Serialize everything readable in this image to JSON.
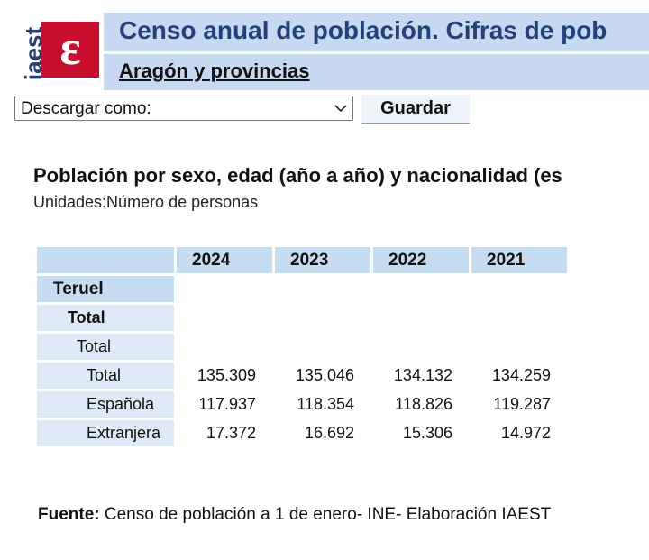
{
  "logo": "iaest",
  "header": {
    "title": "Censo anual de población. Cifras de pob",
    "subtitle": "Aragón y provincias"
  },
  "toolbar": {
    "select": "Descargar como:",
    "button": "Guardar"
  },
  "table_title": "Población por sexo, edad (año a año) y nacionalidad (es",
  "units": "Unidades:Número de personas",
  "table": {
    "columns": [
      "2024",
      "2023",
      "2022",
      "2021"
    ],
    "rows": [
      {
        "label": "Teruel"
      },
      {
        "label": "Total"
      },
      {
        "label": "Total"
      },
      {
        "label": "Total",
        "values": [
          "135.309",
          "135.046",
          "134.132",
          "134.259"
        ]
      },
      {
        "label": "Española",
        "values": [
          "117.937",
          "118.354",
          "118.826",
          "119.287"
        ]
      },
      {
        "label": "Extranjera",
        "values": [
          "17.372",
          "16.692",
          "15.306",
          "14.972"
        ]
      }
    ]
  },
  "footer": {
    "label": "Fuente:",
    "text": "Censo de población a 1 de enero- INE- Elaboración IAEST"
  }
}
